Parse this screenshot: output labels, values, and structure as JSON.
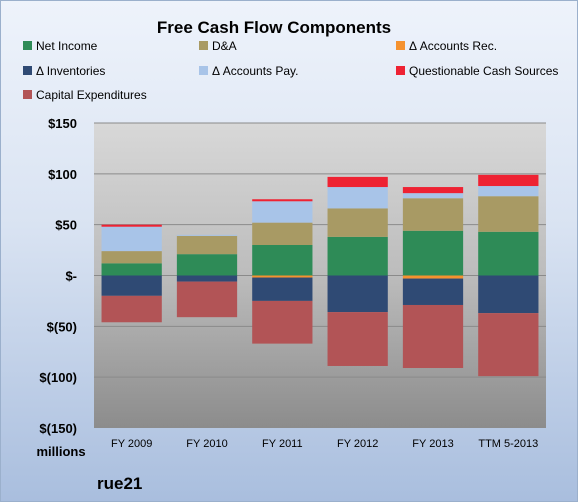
{
  "chart_data": {
    "type": "bar",
    "stacked": true,
    "title": "Free Cash Flow Components",
    "units_label": "millions",
    "brand": "rue21",
    "categories": [
      "FY 2009",
      "FY 2010",
      "FY 2011",
      "FY 2012",
      "FY 2013",
      "TTM 5-2013"
    ],
    "ylim": [
      -150,
      150
    ],
    "yticks": [
      {
        "value": 150,
        "label": "$150"
      },
      {
        "value": 100,
        "label": "$100"
      },
      {
        "value": 50,
        "label": "$50"
      },
      {
        "value": 0,
        "label": "$-"
      },
      {
        "value": -50,
        "label": "$(50)"
      },
      {
        "value": -100,
        "label": "$(100)"
      },
      {
        "value": -150,
        "label": "$(150)"
      }
    ],
    "grid": true,
    "legend_position": "top",
    "series": [
      {
        "name": "Net Income",
        "color": "#2e8b57",
        "values": [
          12,
          21,
          30,
          38,
          44,
          43
        ]
      },
      {
        "name": "D&A",
        "color": "#a89a64",
        "values": [
          12,
          18,
          22,
          28,
          32,
          35
        ]
      },
      {
        "name": "Δ Accounts Rec.",
        "color": "#f5922f",
        "values": [
          0,
          0,
          -2,
          0,
          -3,
          0
        ]
      },
      {
        "name": "Δ Inventories",
        "color": "#2f4a74",
        "values": [
          -20,
          -6,
          -23,
          -36,
          -26,
          -37
        ]
      },
      {
        "name": "Δ Accounts Pay.",
        "color": "#a8c4e8",
        "values": [
          24,
          1,
          21,
          21,
          5,
          10
        ]
      },
      {
        "name": "Questionable Cash Sources",
        "color": "#ee2233",
        "values": [
          2,
          0,
          2,
          10,
          6,
          11
        ]
      },
      {
        "name": "Capital Expenditures",
        "color": "#b25456",
        "values": [
          -26,
          -35,
          -42,
          -53,
          -62,
          -62
        ]
      }
    ]
  }
}
